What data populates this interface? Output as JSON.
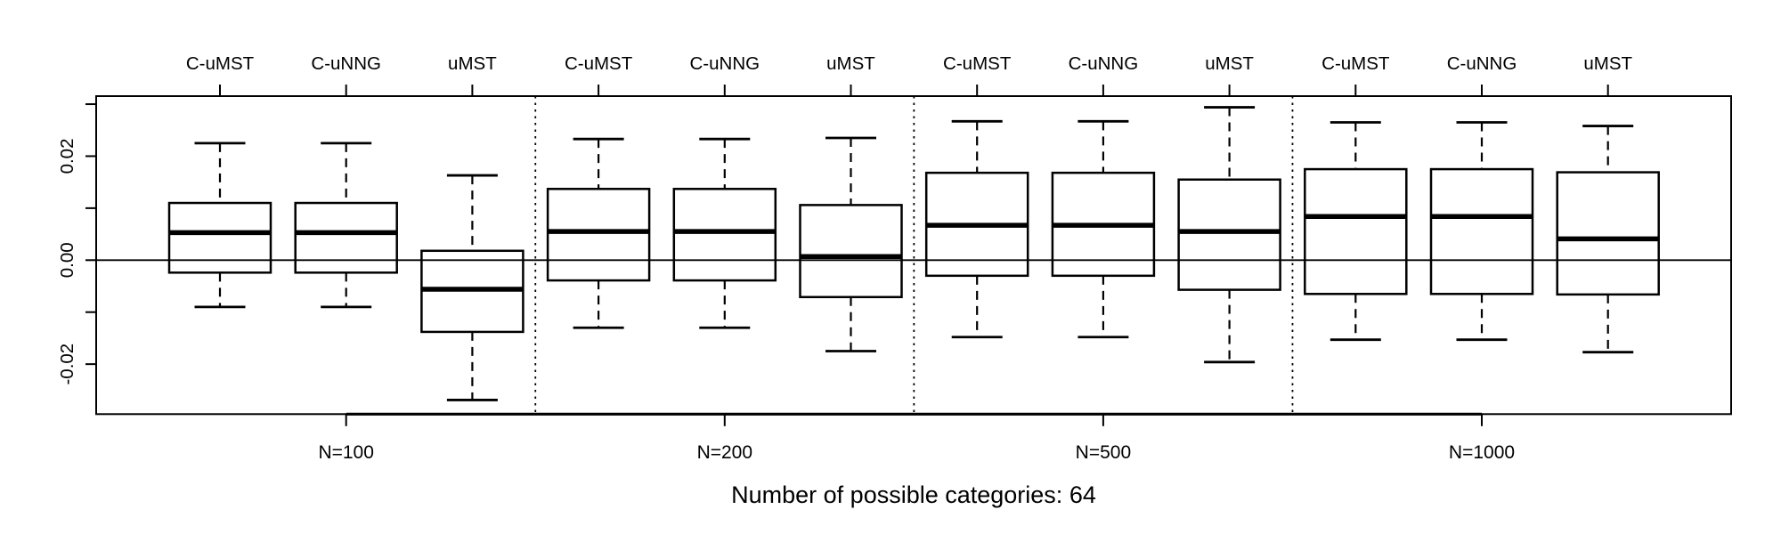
{
  "chart_data": {
    "type": "boxplot",
    "title": "Number of possible categories: 64",
    "y_axis": {
      "tick_values": [
        0.03,
        0.02,
        0.01,
        0.0,
        -0.01,
        -0.02
      ],
      "tick_labels": [
        "",
        "0.02",
        "",
        "0.00",
        "",
        "-0.02"
      ],
      "ylim": [
        -0.0296,
        0.0315
      ]
    },
    "reference_line": 0.0,
    "series_labels": [
      "C-uMST",
      "C-uNNG",
      "uMST"
    ],
    "groups": [
      {
        "label": "N=100",
        "boxes": [
          {
            "method": "C-uMST",
            "low": -0.009,
            "q1": -0.0024,
            "median": 0.0053,
            "q3": 0.011,
            "high": 0.0225
          },
          {
            "method": "C-uNNG",
            "low": -0.009,
            "q1": -0.0024,
            "median": 0.0053,
            "q3": 0.011,
            "high": 0.0225
          },
          {
            "method": "uMST",
            "low": -0.0269,
            "q1": -0.0138,
            "median": -0.0056,
            "q3": 0.0018,
            "high": 0.0163
          }
        ]
      },
      {
        "label": "N=200",
        "boxes": [
          {
            "method": "C-uMST",
            "low": -0.013,
            "q1": -0.0039,
            "median": 0.0055,
            "q3": 0.0137,
            "high": 0.0233
          },
          {
            "method": "C-uNNG",
            "low": -0.013,
            "q1": -0.0039,
            "median": 0.0055,
            "q3": 0.0137,
            "high": 0.0233
          },
          {
            "method": "uMST",
            "low": -0.0175,
            "q1": -0.0071,
            "median": 0.0007,
            "q3": 0.0106,
            "high": 0.0235
          }
        ]
      },
      {
        "label": "N=500",
        "boxes": [
          {
            "method": "C-uMST",
            "low": -0.0148,
            "q1": -0.003,
            "median": 0.0067,
            "q3": 0.0168,
            "high": 0.0267
          },
          {
            "method": "C-uNNG",
            "low": -0.0148,
            "q1": -0.003,
            "median": 0.0067,
            "q3": 0.0168,
            "high": 0.0267
          },
          {
            "method": "uMST",
            "low": -0.0196,
            "q1": -0.0057,
            "median": 0.0055,
            "q3": 0.0155,
            "high": 0.0294
          }
        ]
      },
      {
        "label": "N=1000",
        "boxes": [
          {
            "method": "C-uMST",
            "low": -0.0153,
            "q1": -0.0065,
            "median": 0.0084,
            "q3": 0.0175,
            "high": 0.0265
          },
          {
            "method": "C-uNNG",
            "low": -0.0153,
            "q1": -0.0065,
            "median": 0.0084,
            "q3": 0.0175,
            "high": 0.0265
          },
          {
            "method": "uMST",
            "low": -0.0177,
            "q1": -0.0066,
            "median": 0.0041,
            "q3": 0.0169,
            "high": 0.0258
          }
        ]
      }
    ],
    "layout_hints": {
      "grid": false,
      "separators": "dotted-vertical-between-groups",
      "box_fill": "none",
      "whisker_style": "dashed"
    }
  },
  "colors": {
    "line": "#000000",
    "background": "#ffffff"
  }
}
